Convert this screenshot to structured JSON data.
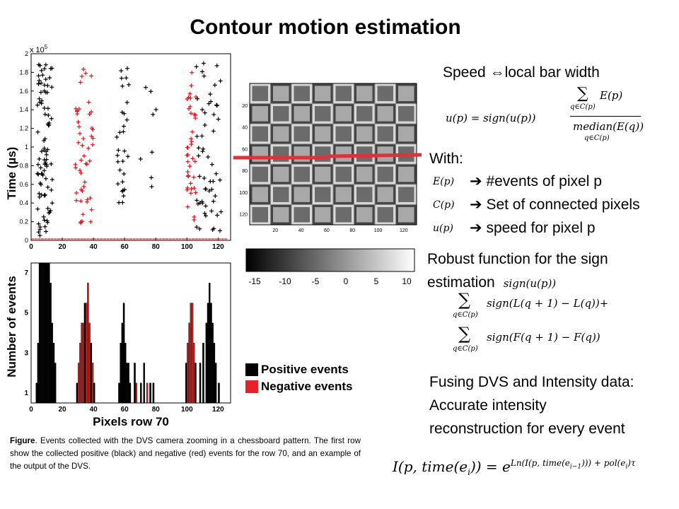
{
  "title": "Contour motion estimation",
  "scatter": {
    "ylabel": "Time (µs)",
    "exponent": "x 10",
    "exponent_power": "5",
    "yticks": [
      "0",
      "0.2",
      "0.4",
      "0.6",
      "0.8",
      "1",
      "1.2",
      "1.4",
      "1.6",
      "1.8",
      "2"
    ],
    "xticks": [
      "0",
      "20",
      "40",
      "60",
      "80",
      "100",
      "120"
    ],
    "colors": {
      "positive": "#000000",
      "negative": "#e8101a"
    }
  },
  "chessboard": {
    "yticks": [
      "20",
      "40",
      "60",
      "80",
      "100",
      "120"
    ],
    "xticks": [
      "20",
      "40",
      "60",
      "80",
      "100",
      "120"
    ]
  },
  "colorbar": {
    "ticks": [
      "-15",
      "-10",
      "-5",
      "0",
      "5",
      "10"
    ]
  },
  "histogram": {
    "ylabel": "Number of events",
    "xlabel": "Pixels row 70",
    "yticks": [
      "1",
      "3",
      "5",
      "7"
    ],
    "xticks": [
      "0",
      "20",
      "40",
      "60",
      "80",
      "100",
      "120"
    ]
  },
  "legend": {
    "positive": "Positive events",
    "negative": "Negative events"
  },
  "speed_heading": {
    "left": "Speed ",
    "arrow": "⇔",
    "right": "local bar width"
  },
  "speed_eq": {
    "lhs": "u(p) = sign(u(p))",
    "num": "E(p)",
    "den": "median(E(q))",
    "sum_sub": "q∈C(p)",
    "den_sub": "q∈C(p)"
  },
  "with_label": "With:",
  "defs": [
    {
      "sym": "E(p)",
      "text": "#events of pixel p"
    },
    {
      "sym": "C(p)",
      "text": "Set of connected pixels"
    },
    {
      "sym": "u(p)",
      "text": "speed for pixel p"
    }
  ],
  "robust": {
    "line1": "Robust function for the sign",
    "line2": "estimation",
    "sym": "sign(u(p))"
  },
  "robust_eq": {
    "sub": "q∈C(p)",
    "line1": "sign(L(q + 1) − L(q))+",
    "line2": "sign(F(q + 1) − F(q))"
  },
  "fusing": {
    "line1": "Fusing DVS and Intensity data:",
    "line2": "Accurate intensity",
    "line3": "reconstruction for every event"
  },
  "final_eq": {
    "lhs": "I(p, time(e",
    "lhs_sub": "i",
    "lhs_end": ")) = e",
    "exp": "Ln(I(p, time(e",
    "exp_sub": "i−1",
    "exp_end": "))) + pol(e",
    "exp_sub2": "i",
    "exp_tail": ")τ"
  },
  "caption": {
    "bold": "Figure",
    "text": ". Events collected with the DVS camera zooming in a chessboard pattern. The first row show the collected positive (black) and negative (red) events for the row 70, and an example of the output of the DVS."
  }
}
